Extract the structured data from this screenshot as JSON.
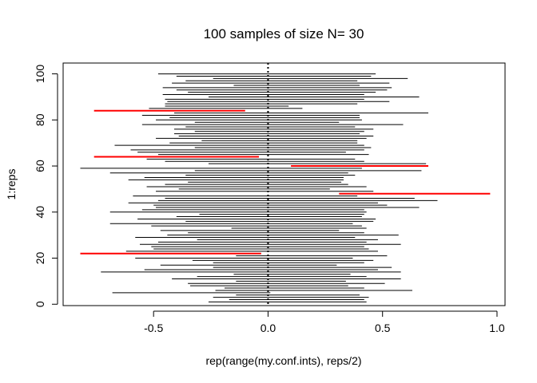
{
  "chart_data": {
    "type": "line",
    "title": "100 samples of size N= 30",
    "xlabel": "rep(range(my.conf.ints), reps/2)",
    "ylabel": "1:reps",
    "xlim": [
      -0.895,
      1.035
    ],
    "ylim": [
      -0.6,
      104.7
    ],
    "xticks": [
      -0.5,
      0.0,
      0.5,
      1.0
    ],
    "xtick_labels": [
      "-0.5",
      "0.0",
      "0.5",
      "1.0"
    ],
    "yticks": [
      0,
      20,
      40,
      60,
      80,
      100
    ],
    "ytick_labels": [
      "0",
      "20",
      "40",
      "60",
      "80",
      "100"
    ],
    "reference_line": {
      "x": 0.0,
      "style": "dotted",
      "color": "#000000"
    },
    "colors": {
      "covers": "#000000",
      "misses": "#ff0000"
    },
    "grid": false,
    "legend": "none",
    "intervals": [
      {
        "rep": 1,
        "lo": -0.26,
        "hi": 0.43,
        "covers": true
      },
      {
        "rep": 2,
        "lo": -0.17,
        "hi": 0.42,
        "covers": true
      },
      {
        "rep": 3,
        "lo": -0.24,
        "hi": 0.44,
        "covers": true
      },
      {
        "rep": 4,
        "lo": -0.14,
        "hi": 0.4,
        "covers": true
      },
      {
        "rep": 5,
        "lo": -0.68,
        "hi": 0.01,
        "covers": true
      },
      {
        "rep": 6,
        "lo": -0.23,
        "hi": 0.63,
        "covers": true
      },
      {
        "rep": 7,
        "lo": -0.19,
        "hi": 0.42,
        "covers": true
      },
      {
        "rep": 8,
        "lo": -0.34,
        "hi": 0.35,
        "covers": true
      },
      {
        "rep": 9,
        "lo": -0.35,
        "hi": 0.51,
        "covers": true
      },
      {
        "rep": 10,
        "lo": -0.14,
        "hi": 0.34,
        "covers": true
      },
      {
        "rep": 11,
        "lo": -0.42,
        "hi": 0.58,
        "covers": true
      },
      {
        "rep": 12,
        "lo": -0.31,
        "hi": 0.43,
        "covers": true
      },
      {
        "rep": 13,
        "lo": -0.15,
        "hi": 0.36,
        "covers": true
      },
      {
        "rep": 14,
        "lo": -0.73,
        "hi": 0.58,
        "covers": true
      },
      {
        "rep": 15,
        "lo": -0.54,
        "hi": 0.48,
        "covers": true
      },
      {
        "rep": 16,
        "lo": -0.24,
        "hi": 0.54,
        "covers": true
      },
      {
        "rep": 17,
        "lo": -0.47,
        "hi": 0.3,
        "covers": true
      },
      {
        "rep": 18,
        "lo": -0.24,
        "hi": 0.42,
        "covers": true
      },
      {
        "rep": 19,
        "lo": -0.33,
        "hi": 0.46,
        "covers": true
      },
      {
        "rep": 20,
        "lo": -0.58,
        "hi": 0.37,
        "covers": true
      },
      {
        "rep": 21,
        "lo": -0.14,
        "hi": 0.52,
        "covers": true
      },
      {
        "rep": 22,
        "lo": -0.82,
        "hi": -0.03,
        "covers": false
      },
      {
        "rep": 23,
        "lo": -0.62,
        "hi": 0.48,
        "covers": true
      },
      {
        "rep": 24,
        "lo": -0.5,
        "hi": 0.44,
        "covers": true
      },
      {
        "rep": 25,
        "lo": -0.51,
        "hi": 0.42,
        "covers": true
      },
      {
        "rep": 26,
        "lo": -0.56,
        "hi": 0.58,
        "covers": true
      },
      {
        "rep": 27,
        "lo": -0.48,
        "hi": 0.43,
        "covers": true
      },
      {
        "rep": 28,
        "lo": -0.31,
        "hi": 0.48,
        "covers": true
      },
      {
        "rep": 29,
        "lo": -0.58,
        "hi": 0.38,
        "covers": true
      },
      {
        "rep": 30,
        "lo": -0.44,
        "hi": 0.57,
        "covers": true
      },
      {
        "rep": 31,
        "lo": -0.35,
        "hi": 0.42,
        "covers": true
      },
      {
        "rep": 32,
        "lo": -0.47,
        "hi": 0.31,
        "covers": true
      },
      {
        "rep": 33,
        "lo": -0.16,
        "hi": 0.43,
        "covers": true
      },
      {
        "rep": 34,
        "lo": -0.51,
        "hi": 0.41,
        "covers": true
      },
      {
        "rep": 35,
        "lo": -0.69,
        "hi": 0.37,
        "covers": true
      },
      {
        "rep": 36,
        "lo": -0.36,
        "hi": 0.46,
        "covers": true
      },
      {
        "rep": 37,
        "lo": -0.57,
        "hi": 0.47,
        "covers": true
      },
      {
        "rep": 38,
        "lo": -0.4,
        "hi": 0.41,
        "covers": true
      },
      {
        "rep": 39,
        "lo": -0.3,
        "hi": 0.42,
        "covers": true
      },
      {
        "rep": 40,
        "lo": -0.69,
        "hi": 0.43,
        "covers": true
      },
      {
        "rep": 41,
        "lo": -0.55,
        "hi": 0.42,
        "covers": true
      },
      {
        "rep": 42,
        "lo": -0.49,
        "hi": 0.66,
        "covers": true
      },
      {
        "rep": 43,
        "lo": -0.5,
        "hi": 0.52,
        "covers": true
      },
      {
        "rep": 44,
        "lo": -0.61,
        "hi": 0.48,
        "covers": true
      },
      {
        "rep": 45,
        "lo": -0.48,
        "hi": 0.74,
        "covers": true
      },
      {
        "rep": 46,
        "lo": -0.45,
        "hi": 0.64,
        "covers": true
      },
      {
        "rep": 47,
        "lo": -0.59,
        "hi": 0.39,
        "covers": true
      },
      {
        "rep": 48,
        "lo": 0.31,
        "hi": 0.97,
        "covers": false
      },
      {
        "rep": 49,
        "lo": -0.49,
        "hi": 0.46,
        "covers": true
      },
      {
        "rep": 50,
        "lo": -0.39,
        "hi": 0.27,
        "covers": true
      },
      {
        "rep": 51,
        "lo": -0.53,
        "hi": 0.43,
        "covers": true
      },
      {
        "rep": 52,
        "lo": -0.45,
        "hi": 0.35,
        "covers": true
      },
      {
        "rep": 53,
        "lo": -0.35,
        "hi": 0.32,
        "covers": true
      },
      {
        "rep": 54,
        "lo": -0.61,
        "hi": 0.33,
        "covers": true
      },
      {
        "rep": 55,
        "lo": -0.54,
        "hi": 0.33,
        "covers": true
      },
      {
        "rep": 56,
        "lo": -0.36,
        "hi": 0.38,
        "covers": true
      },
      {
        "rep": 57,
        "lo": -0.69,
        "hi": 0.35,
        "covers": true
      },
      {
        "rep": 58,
        "lo": -0.32,
        "hi": 0.67,
        "covers": true
      },
      {
        "rep": 59,
        "lo": -0.82,
        "hi": 0.41,
        "covers": true
      },
      {
        "rep": 60,
        "lo": 0.1,
        "hi": 0.7,
        "covers": false
      },
      {
        "rep": 61,
        "lo": -0.26,
        "hi": 0.69,
        "covers": true
      },
      {
        "rep": 62,
        "lo": -0.45,
        "hi": 0.42,
        "covers": true
      },
      {
        "rep": 63,
        "lo": -0.53,
        "hi": 0.38,
        "covers": true
      },
      {
        "rep": 64,
        "lo": -0.76,
        "hi": -0.04,
        "covers": false
      },
      {
        "rep": 65,
        "lo": -0.48,
        "hi": 0.44,
        "covers": true
      },
      {
        "rep": 66,
        "lo": -0.57,
        "hi": 0.34,
        "covers": true
      },
      {
        "rep": 67,
        "lo": -0.6,
        "hi": 0.42,
        "covers": true
      },
      {
        "rep": 68,
        "lo": -0.32,
        "hi": 0.45,
        "covers": true
      },
      {
        "rep": 69,
        "lo": -0.67,
        "hi": 0.42,
        "covers": true
      },
      {
        "rep": 70,
        "lo": -0.43,
        "hi": 0.39,
        "covers": true
      },
      {
        "rep": 71,
        "lo": -0.29,
        "hi": 0.39,
        "covers": true
      },
      {
        "rep": 72,
        "lo": -0.49,
        "hi": 0.43,
        "covers": true
      },
      {
        "rep": 73,
        "lo": -0.39,
        "hi": 0.46,
        "covers": true
      },
      {
        "rep": 74,
        "lo": -0.41,
        "hi": 0.4,
        "covers": true
      },
      {
        "rep": 75,
        "lo": -0.32,
        "hi": 0.42,
        "covers": true
      },
      {
        "rep": 76,
        "lo": -0.41,
        "hi": 0.46,
        "covers": true
      },
      {
        "rep": 77,
        "lo": -0.36,
        "hi": 0.38,
        "covers": true
      },
      {
        "rep": 78,
        "lo": -0.55,
        "hi": 0.59,
        "covers": true
      },
      {
        "rep": 79,
        "lo": -0.32,
        "hi": 0.31,
        "covers": true
      },
      {
        "rep": 80,
        "lo": -0.49,
        "hi": 0.41,
        "covers": true
      },
      {
        "rep": 81,
        "lo": -0.43,
        "hi": 0.4,
        "covers": true
      },
      {
        "rep": 82,
        "lo": -0.55,
        "hi": 0.4,
        "covers": true
      },
      {
        "rep": 83,
        "lo": -0.41,
        "hi": 0.7,
        "covers": true
      },
      {
        "rep": 84,
        "lo": -0.76,
        "hi": -0.1,
        "covers": false
      },
      {
        "rep": 85,
        "lo": -0.52,
        "hi": 0.15,
        "covers": true
      },
      {
        "rep": 86,
        "lo": -0.45,
        "hi": 0.09,
        "covers": true
      },
      {
        "rep": 87,
        "lo": -0.45,
        "hi": 0.39,
        "covers": true
      },
      {
        "rep": 88,
        "lo": -0.44,
        "hi": 0.53,
        "covers": true
      },
      {
        "rep": 89,
        "lo": -0.45,
        "hi": 0.42,
        "covers": true
      },
      {
        "rep": 90,
        "lo": -0.26,
        "hi": 0.66,
        "covers": true
      },
      {
        "rep": 91,
        "lo": -0.46,
        "hi": 0.42,
        "covers": true
      },
      {
        "rep": 92,
        "lo": -0.35,
        "hi": 0.47,
        "covers": true
      },
      {
        "rep": 93,
        "lo": -0.4,
        "hi": 0.52,
        "covers": true
      },
      {
        "rep": 94,
        "lo": -0.46,
        "hi": 0.54,
        "covers": true
      },
      {
        "rep": 95,
        "lo": -0.15,
        "hi": 0.4,
        "covers": true
      },
      {
        "rep": 96,
        "lo": -0.42,
        "hi": 0.53,
        "covers": true
      },
      {
        "rep": 97,
        "lo": -0.36,
        "hi": 0.39,
        "covers": true
      },
      {
        "rep": 98,
        "lo": -0.24,
        "hi": 0.61,
        "covers": true
      },
      {
        "rep": 99,
        "lo": -0.4,
        "hi": 0.45,
        "covers": true
      },
      {
        "rep": 100,
        "lo": -0.48,
        "hi": 0.47,
        "covers": true
      }
    ]
  }
}
